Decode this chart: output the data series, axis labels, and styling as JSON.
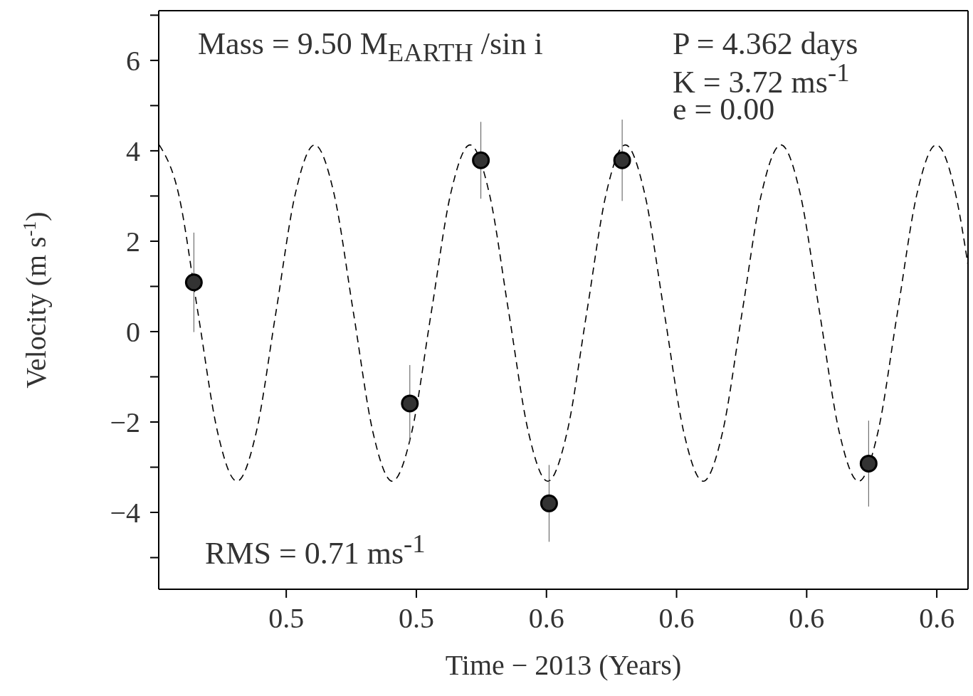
{
  "chart_data": {
    "type": "scatter",
    "xlabel": "Time − 2013  (Years)",
    "ylabel": "Velocity  (m s$^{-1}$)",
    "annotations": [
      "Mass = 9.50 M$_{EARTH}$ /sin i",
      "P = 4.362 days",
      "K = 3.72 ms$^{-1}$",
      "e = 0.00",
      "RMS = 0.71 ms$^{-1}$"
    ],
    "xlim": [
      0.5202,
      0.5824
    ],
    "xticks": [
      {
        "value": 0.53,
        "label": "0.5"
      },
      {
        "value": 0.54,
        "label": "0.5"
      },
      {
        "value": 0.55,
        "label": "0.6"
      },
      {
        "value": 0.56,
        "label": "0.6"
      },
      {
        "value": 0.57,
        "label": "0.6"
      },
      {
        "value": 0.58,
        "label": "0.6"
      }
    ],
    "ylim": [
      -5.7,
      7.1
    ],
    "yticks": [
      {
        "value": -5,
        "label": null
      },
      {
        "value": -4,
        "label": "−4"
      },
      {
        "value": -3,
        "label": null
      },
      {
        "value": -2,
        "label": "−2"
      },
      {
        "value": -1,
        "label": null
      },
      0,
      {
        "value": 1,
        "label": null
      },
      2,
      {
        "value": 3,
        "label": null
      },
      4,
      {
        "value": 5,
        "label": null
      },
      6,
      {
        "value": 7,
        "label": null
      }
    ],
    "series": [
      {
        "type": "line",
        "color": "#000000",
        "line_style": "dashed",
        "marker": "none",
        "x": [
          0.52024,
          0.52173,
          0.52322,
          0.52472,
          0.52621,
          0.5277,
          0.5292,
          0.53069,
          0.53218,
          0.53368,
          0.53517,
          0.53666,
          0.53815,
          0.53965,
          0.54114,
          0.54263,
          0.54413,
          0.54562,
          0.54711,
          0.54861,
          0.5501,
          0.55159,
          0.55309,
          0.55458,
          0.55607,
          0.55756,
          0.55906,
          0.56055,
          0.56204,
          0.56354,
          0.56503,
          0.56652,
          0.56802,
          0.56951,
          0.571,
          0.5725,
          0.57399,
          0.57548,
          0.57697,
          0.57847,
          0.57996,
          0.58145,
          0.5824
        ],
        "values": [
          4.13,
          3.04,
          0.41,
          -2.22,
          -3.31,
          -2.22,
          0.41,
          3.04,
          4.13,
          3.04,
          0.41,
          -2.22,
          -3.31,
          -2.22,
          0.41,
          3.04,
          4.13,
          3.04,
          0.41,
          -2.22,
          -3.31,
          -2.22,
          0.41,
          3.04,
          4.13,
          3.04,
          0.41,
          -2.22,
          -3.31,
          -2.22,
          0.41,
          3.04,
          4.13,
          3.04,
          0.41,
          -2.22,
          -3.31,
          -2.22,
          0.41,
          3.04,
          4.13,
          3.04,
          1.47
        ]
      },
      {
        "color": "#333333",
        "marker": "circle",
        "x": [
          0.5229,
          0.5395,
          0.54496,
          0.5502,
          0.55582,
          0.57476
        ],
        "values": [
          1.09,
          -1.59,
          3.79,
          -3.8,
          3.79,
          -2.92
        ],
        "errors": [
          1.1,
          0.85,
          0.85,
          0.85,
          0.9,
          0.95
        ]
      }
    ]
  }
}
